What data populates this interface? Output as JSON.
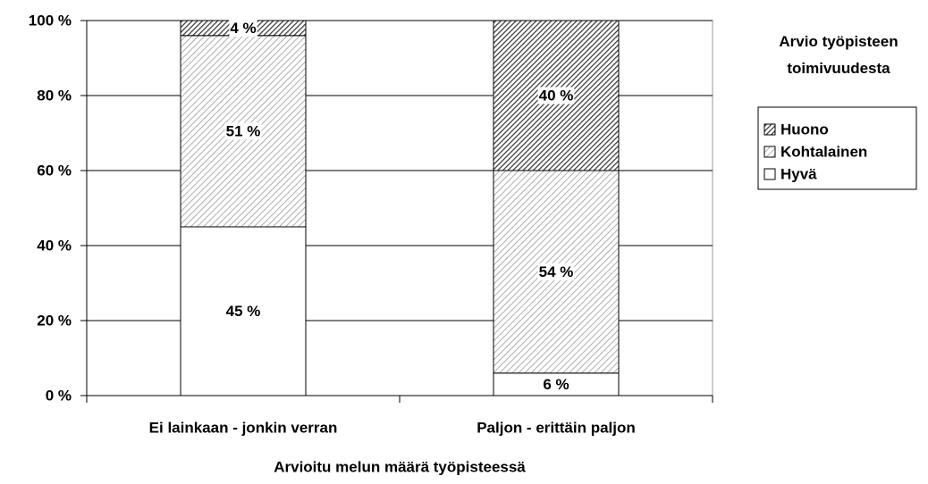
{
  "chart_data": {
    "type": "stacked_bar",
    "categories": [
      "Ei lainkaan - jonkin verran",
      "Paljon - erittäin paljon"
    ],
    "series": [
      {
        "name": "Hyvä",
        "color": "#ffffff",
        "values": [
          45,
          6
        ],
        "value_labels": [
          "45 %",
          "6 %"
        ]
      },
      {
        "name": "Kohtalainen",
        "color": "#9a9a9a",
        "values": [
          51,
          54
        ],
        "value_labels": [
          "51 %",
          "54 %"
        ]
      },
      {
        "name": "Huono",
        "color": "#3a3a3a",
        "values": [
          4,
          40
        ],
        "value_labels": [
          "4 %",
          "40 %"
        ]
      }
    ],
    "ylim": [
      0,
      100
    ],
    "yticks": [
      {
        "value": 0,
        "label": "0 %"
      },
      {
        "value": 20,
        "label": "20 %"
      },
      {
        "value": 40,
        "label": "40 %"
      },
      {
        "value": 60,
        "label": "60 %"
      },
      {
        "value": 80,
        "label": "80 %"
      },
      {
        "value": 100,
        "label": "100 %"
      }
    ],
    "xlabel": "Arvioitu melun määrä työpisteessä",
    "legend_title": "Arvio työpisteen toimivuudesta",
    "legend_position": "right",
    "grid": true
  }
}
